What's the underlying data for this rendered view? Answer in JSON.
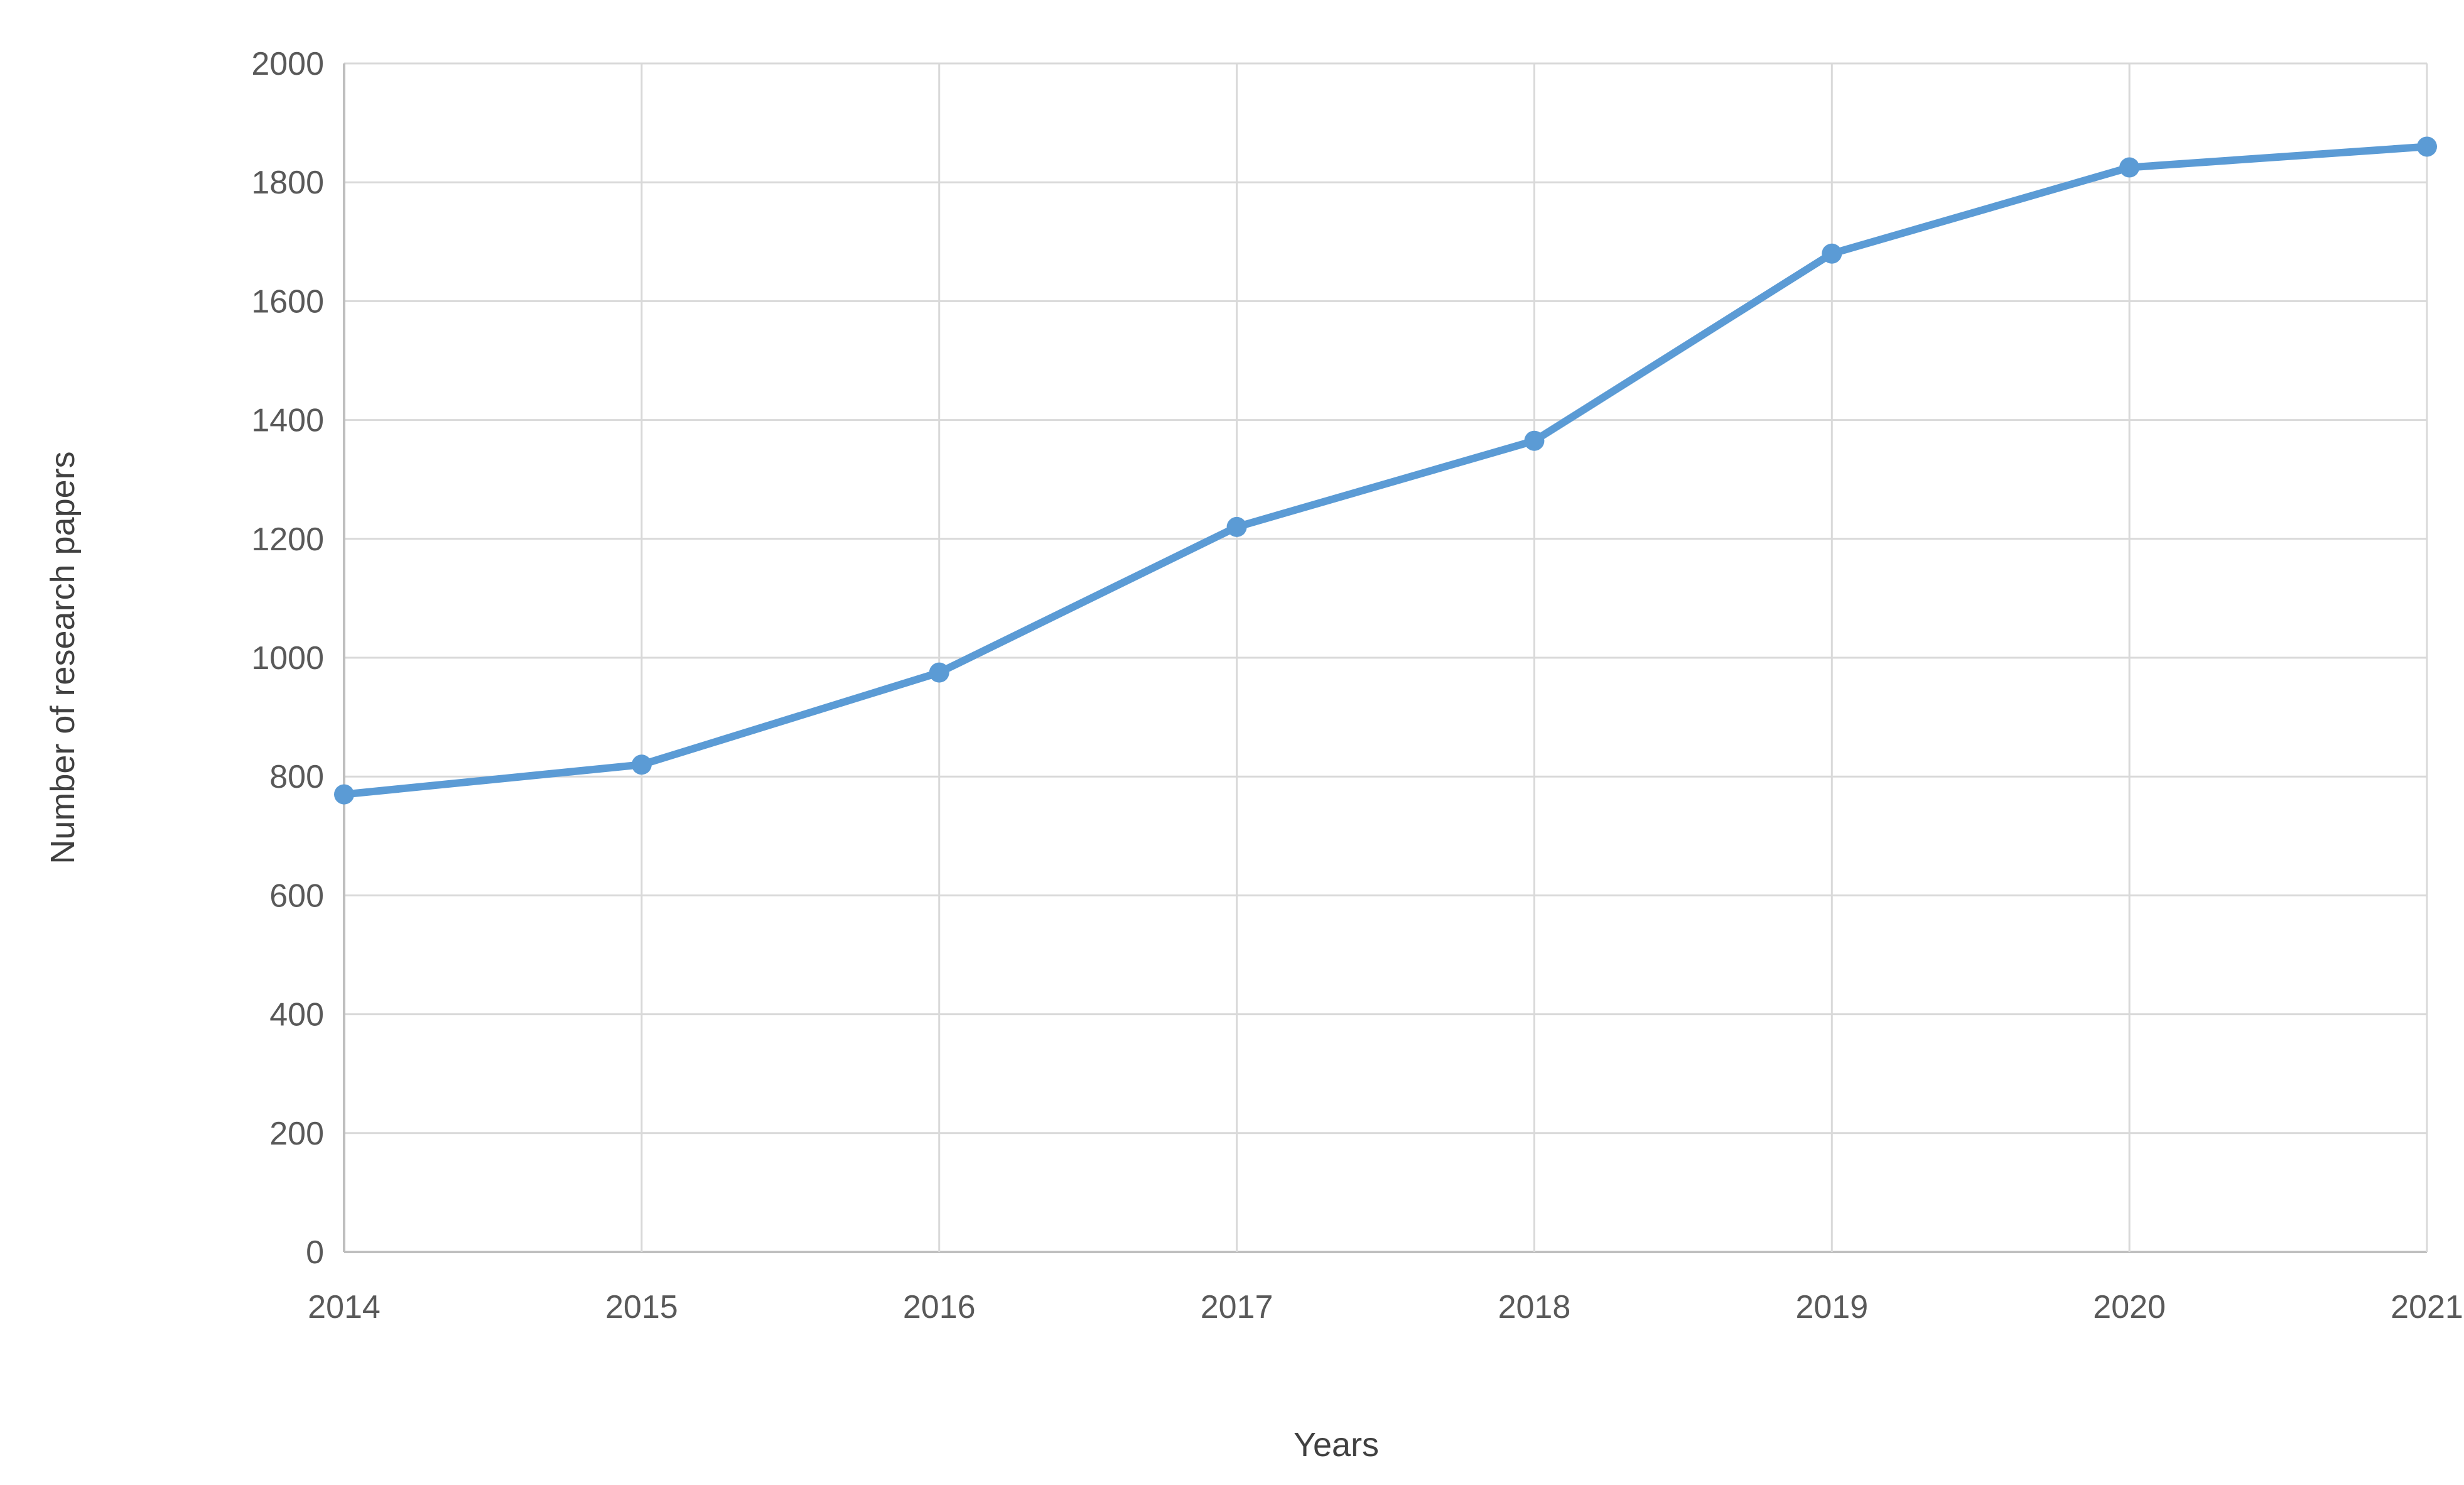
{
  "page": {
    "background": "#ffffff"
  },
  "chart_data": {
    "type": "line",
    "title": "",
    "xlabel": "Years",
    "ylabel": "Number of research papers",
    "categories": [
      "2014",
      "2015",
      "2016",
      "2017",
      "2018",
      "2019",
      "2020",
      "2021"
    ],
    "series": [
      {
        "name": "Number of research papers",
        "values": [
          770,
          820,
          975,
          1220,
          1365,
          1680,
          1825,
          1860
        ]
      }
    ],
    "ylim": [
      0,
      2000
    ],
    "ytick_step": 200,
    "yticks": [
      0,
      200,
      400,
      600,
      800,
      1000,
      1200,
      1400,
      1600,
      1800,
      2000
    ],
    "grid": true,
    "legend": "none",
    "marker": "circle",
    "line_color": "#5B9BD5",
    "gridline_color": "#D9D9D9",
    "axis_line_color": "#BFBFBF",
    "tick_label_color": "#595959",
    "axis_title_color": "#404040"
  }
}
